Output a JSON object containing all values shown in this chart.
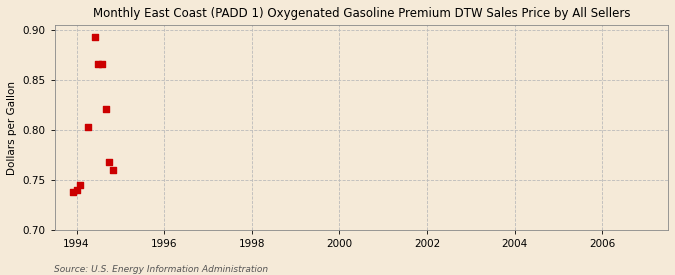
{
  "title": "Monthly East Coast (PADD 1) Oxygenated Gasoline Premium DTW Sales Price by All Sellers",
  "ylabel": "Dollars per Gallon",
  "source": "Source: U.S. Energy Information Administration",
  "background_color": "#f5ead8",
  "x_data": [
    1993.917,
    1994.0,
    1994.083,
    1994.25,
    1994.417,
    1994.5,
    1994.583,
    1994.667,
    1994.75,
    1994.833
  ],
  "y_data": [
    0.738,
    0.74,
    0.745,
    0.803,
    0.893,
    0.866,
    0.866,
    0.821,
    0.768,
    0.76
  ],
  "marker_color": "#cc0000",
  "marker_size": 16,
  "xlim": [
    1993.5,
    2007.5
  ],
  "ylim": [
    0.7,
    0.905
  ],
  "xticks": [
    1994,
    1996,
    1998,
    2000,
    2002,
    2004,
    2006
  ],
  "yticks": [
    0.7,
    0.75,
    0.8,
    0.85,
    0.9
  ],
  "grid_color": "#bbbbbb",
  "title_fontsize": 8.5,
  "label_fontsize": 7.5,
  "tick_fontsize": 7.5,
  "source_fontsize": 6.5
}
